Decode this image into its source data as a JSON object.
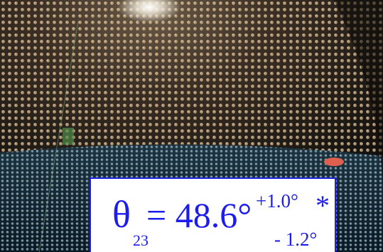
{
  "overlay": {
    "symbol": "θ",
    "subscript": "23",
    "equation": "= 48.6°",
    "upper_error": "+1.0°",
    "lower_error": "- 1.2°",
    "note_mark": "*"
  }
}
